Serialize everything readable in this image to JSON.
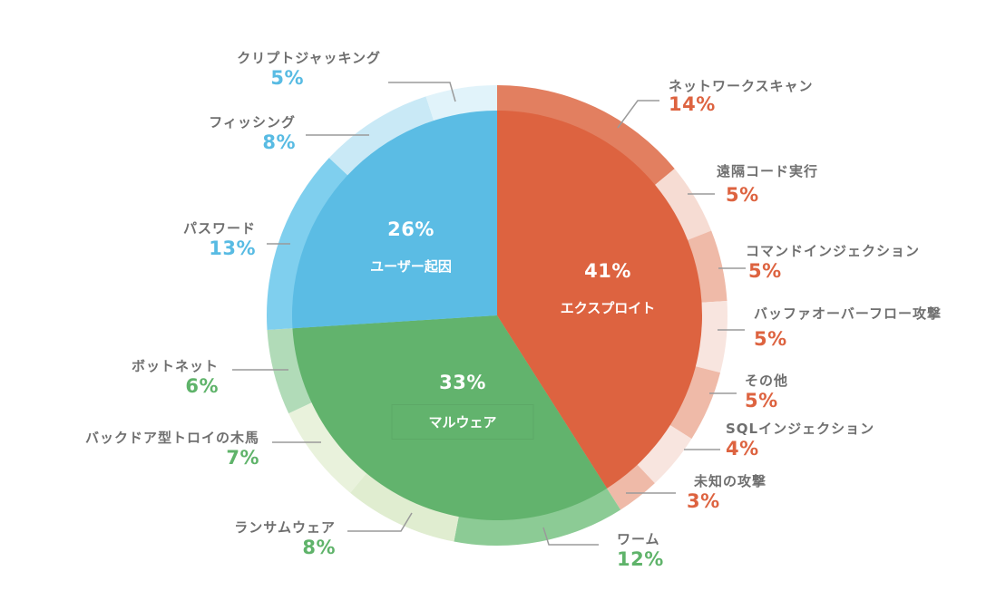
{
  "chart_data": {
    "type": "pie",
    "subtype": "nested-sunburst",
    "title": "",
    "start_angle_deg": 0,
    "direction": "clockwise",
    "inner": [
      {
        "name": "エクスプロイト",
        "value": 41,
        "label": "41%",
        "color": "#dd6340"
      },
      {
        "name": "マルウェア",
        "value": 33,
        "label": "33%",
        "color": "#62b36d"
      },
      {
        "name": "ユーザー起因",
        "value": 26,
        "label": "26%",
        "color": "#5bbce4"
      }
    ],
    "outer": [
      {
        "parent": "エクスプロイト",
        "name": "ネットワークスキャン",
        "value": 14,
        "label": "14%",
        "color": "#e27f60"
      },
      {
        "parent": "エクスプロイト",
        "name": "遠隔コード実行",
        "value": 5,
        "label": "5%",
        "color": "#f6dcd3"
      },
      {
        "parent": "エクスプロイト",
        "name": "コマンドインジェクション",
        "value": 5,
        "label": "5%",
        "color": "#efbaa8"
      },
      {
        "parent": "エクスプロイト",
        "name": "バッファオーバーフロー攻撃",
        "value": 5,
        "label": "5%",
        "color": "#f8e5df"
      },
      {
        "parent": "エクスプロイト",
        "name": "その他",
        "value": 5,
        "label": "5%",
        "color": "#efbaa8"
      },
      {
        "parent": "エクスプロイト",
        "name": "SQLインジェクション",
        "value": 4,
        "label": "4%",
        "color": "#f8e5df"
      },
      {
        "parent": "エクスプロイト",
        "name": "未知の攻撃",
        "value": 3,
        "label": "3%",
        "color": "#efbaa8"
      },
      {
        "parent": "マルウェア",
        "name": "ワーム",
        "value": 12,
        "label": "12%",
        "color": "#8ccb95"
      },
      {
        "parent": "マルウェア",
        "name": "ランサムウェア",
        "value": 8,
        "label": "8%",
        "color": "#e0edd0"
      },
      {
        "parent": "マルウェア",
        "name": "バックドア型トロイの木馬",
        "value": 7,
        "label": "7%",
        "color": "#e9f2dc"
      },
      {
        "parent": "マルウェア",
        "name": "ボットネット",
        "value": 6,
        "label": "6%",
        "color": "#b1dbb8"
      },
      {
        "parent": "ユーザー起因",
        "name": "パスワード",
        "value": 13,
        "label": "13%",
        "color": "#7fcfee"
      },
      {
        "parent": "ユーザー起因",
        "name": "フィッシング",
        "value": 8,
        "label": "8%",
        "color": "#c9e9f6"
      },
      {
        "parent": "ユーザー起因",
        "name": "クリプトジャッキング",
        "value": 5,
        "label": "5%",
        "color": "#e1f3fa"
      }
    ],
    "colors": {
      "exploit": "#dd6340",
      "malware": "#62b36d",
      "user": "#5bbce4",
      "label_text": "#6f6f6f",
      "leader_line": "#9a9a9a"
    }
  },
  "labels": {
    "inner": {
      "exploit": {
        "pct": "41%",
        "name": "エクスプロイト"
      },
      "malware": {
        "pct": "33%",
        "name": "マルウェア"
      },
      "user": {
        "pct": "26%",
        "name": "ユーザー起因"
      }
    },
    "outer": {
      "network_scan": {
        "name": "ネットワークスキャン",
        "pct": "14%"
      },
      "rce": {
        "name": "遠隔コード実行",
        "pct": "5%"
      },
      "cmd_injection": {
        "name": "コマンドインジェクション",
        "pct": "5%"
      },
      "buffer_overflow": {
        "name": "バッファオーバーフロー攻撃",
        "pct": "5%"
      },
      "other": {
        "name": "その他",
        "pct": "5%"
      },
      "sql_injection": {
        "name": "SQLインジェクション",
        "pct": "4%"
      },
      "unknown": {
        "name": "未知の攻撃",
        "pct": "3%"
      },
      "worm": {
        "name": "ワーム",
        "pct": "12%"
      },
      "ransomware": {
        "name": "ランサムウェア",
        "pct": "8%"
      },
      "backdoor": {
        "name": "バックドア型トロイの木馬",
        "pct": "7%"
      },
      "botnet": {
        "name": "ボットネット",
        "pct": "6%"
      },
      "password": {
        "name": "パスワード",
        "pct": "13%"
      },
      "phishing": {
        "name": "フィッシング",
        "pct": "8%"
      },
      "cryptojacking": {
        "name": "クリプトジャッキング",
        "pct": "5%"
      }
    }
  }
}
